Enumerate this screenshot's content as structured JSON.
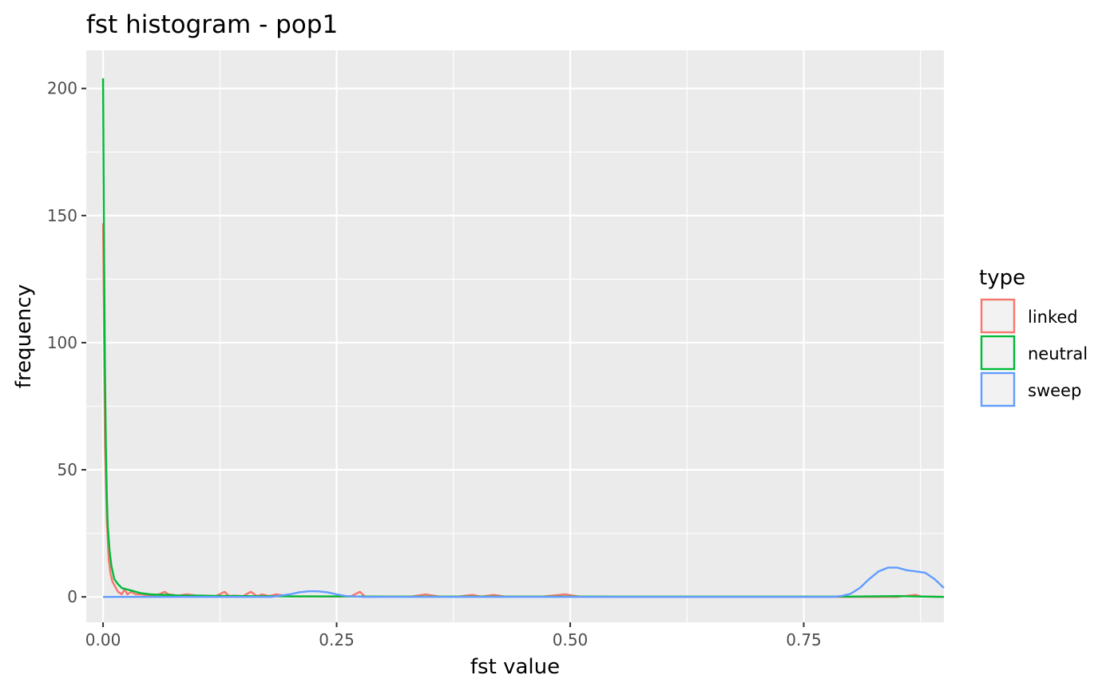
{
  "chart_data": {
    "type": "line",
    "title": "fst histogram - pop1",
    "xlabel": "fst value",
    "ylabel": "frequency",
    "xlim": [
      -0.018,
      0.9
    ],
    "ylim": [
      -10,
      215
    ],
    "x_ticks": [
      0.0,
      0.25,
      0.5,
      0.75
    ],
    "x_tick_labels": [
      "0.00",
      "0.25",
      "0.50",
      "0.75"
    ],
    "y_ticks": [
      0,
      50,
      100,
      150,
      200
    ],
    "y_tick_labels": [
      "0",
      "50",
      "100",
      "150",
      "200"
    ],
    "grid": true,
    "legend": {
      "title": "type",
      "position": "right"
    },
    "series": [
      {
        "name": "linked",
        "color": "#F8766D",
        "x": [
          0.0,
          0.002,
          0.004,
          0.006,
          0.008,
          0.01,
          0.013,
          0.016,
          0.02,
          0.023,
          0.026,
          0.03,
          0.035,
          0.04,
          0.05,
          0.06,
          0.066,
          0.07,
          0.08,
          0.09,
          0.1,
          0.11,
          0.12,
          0.13,
          0.135,
          0.14,
          0.15,
          0.158,
          0.165,
          0.17,
          0.178,
          0.185,
          0.2,
          0.22,
          0.25,
          0.265,
          0.275,
          0.28,
          0.3,
          0.33,
          0.345,
          0.36,
          0.38,
          0.395,
          0.405,
          0.418,
          0.43,
          0.45,
          0.47,
          0.495,
          0.51,
          0.55,
          0.6,
          0.65,
          0.7,
          0.75,
          0.8,
          0.85,
          0.87,
          0.875,
          0.88,
          0.9
        ],
        "values": [
          147,
          60,
          30,
          15,
          9,
          6,
          4,
          2,
          1,
          3,
          1,
          2,
          1,
          1,
          0.5,
          1,
          2,
          1,
          0.5,
          1,
          0.5,
          0.5,
          0.2,
          2,
          0.3,
          0.5,
          0.3,
          2,
          0.3,
          1,
          0.3,
          1,
          0.2,
          0.2,
          0.1,
          0.2,
          2,
          0.2,
          0.1,
          0.1,
          1,
          0.1,
          0.1,
          0.8,
          0.1,
          0.8,
          0.1,
          0.1,
          0.1,
          1,
          0.1,
          0,
          0,
          0,
          0,
          0,
          0,
          0,
          0.8,
          0.2,
          0.1,
          0
        ]
      },
      {
        "name": "neutral",
        "color": "#00BA38",
        "x": [
          0.0,
          0.001,
          0.002,
          0.003,
          0.004,
          0.005,
          0.007,
          0.009,
          0.012,
          0.016,
          0.02,
          0.025,
          0.03,
          0.035,
          0.04,
          0.05,
          0.06,
          0.07,
          0.08,
          0.1,
          0.12,
          0.15,
          0.2,
          0.25,
          0.3,
          0.4,
          0.5,
          0.6,
          0.7,
          0.8,
          0.85,
          0.9
        ],
        "values": [
          204,
          140,
          90,
          60,
          40,
          28,
          18,
          12,
          7,
          5,
          3.5,
          3,
          2.5,
          2,
          1.5,
          1,
          0.8,
          0.8,
          0.5,
          0.5,
          0.4,
          0.3,
          0.2,
          0.2,
          0.1,
          0.1,
          0.1,
          0.1,
          0.1,
          0.1,
          0.3,
          0
        ]
      },
      {
        "name": "sweep",
        "color": "#619CFF",
        "x": [
          0.0,
          0.1,
          0.18,
          0.2,
          0.21,
          0.22,
          0.23,
          0.24,
          0.25,
          0.26,
          0.28,
          0.35,
          0.5,
          0.7,
          0.78,
          0.79,
          0.8,
          0.81,
          0.82,
          0.83,
          0.84,
          0.85,
          0.86,
          0.87,
          0.88,
          0.89,
          0.9
        ],
        "values": [
          0,
          0,
          0,
          1,
          1.8,
          2.2,
          2.2,
          1.8,
          1.0,
          0.3,
          0,
          0,
          0,
          0,
          0,
          0.3,
          1.2,
          3.5,
          7,
          10,
          11.5,
          11.5,
          10.5,
          10,
          9.5,
          7,
          3.5
        ]
      }
    ]
  }
}
